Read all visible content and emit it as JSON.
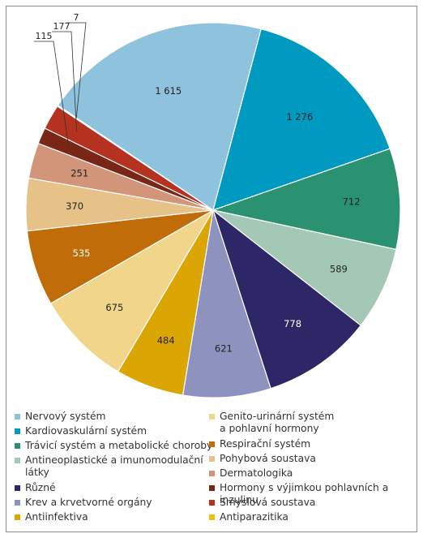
{
  "chart_data": {
    "type": "pie",
    "title": "",
    "start_angle_deg": -56,
    "direction": "clockwise",
    "slices": [
      {
        "label": "Nervový systém",
        "value": 1615,
        "value_label": "1 615",
        "color": "#8fc2dd",
        "label_light": false
      },
      {
        "label": "Kardiovaskulární systém",
        "value": 1276,
        "value_label": "1 276",
        "color": "#009ac0",
        "label_light": false
      },
      {
        "label": "Trávicí systém a metabolické choroby",
        "value": 712,
        "value_label": "712",
        "color": "#2a9270",
        "label_light": false
      },
      {
        "label": "Antineoplastické a imunomodulační látky",
        "value": 589,
        "value_label": "589",
        "color": "#a3c9b6",
        "label_light": false
      },
      {
        "label": "Různé",
        "value": 778,
        "value_label": "778",
        "color": "#2d2767",
        "label_light": true
      },
      {
        "label": "Krev a krvetvorné orgány",
        "value": 621,
        "value_label": "621",
        "color": "#8d92bf",
        "label_light": false
      },
      {
        "label": "Antiinfektiva",
        "value": 484,
        "value_label": "484",
        "color": "#dba503",
        "label_light": false
      },
      {
        "label": "Genito-urinární systém a pohlavní hormony",
        "value": 675,
        "value_label": "675",
        "color": "#f0d58a",
        "label_light": false
      },
      {
        "label": "Respirační systém",
        "value": 535,
        "value_label": "535",
        "color": "#c06d09",
        "label_light": true
      },
      {
        "label": "Pohybová soustava",
        "value": 370,
        "value_label": "370",
        "color": "#e6c188",
        "label_light": false
      },
      {
        "label": "Dermatologika",
        "value": 251,
        "value_label": "251",
        "color": "#d2957a",
        "label_light": false
      },
      {
        "label": "Hormony s výjimkou pohlavních a inzulinu",
        "value": 115,
        "value_label": "115",
        "color": "#7a2617",
        "label_light": false
      },
      {
        "label": "Smyslová soustava",
        "value": 177,
        "value_label": "177",
        "color": "#b53220",
        "label_light": false
      },
      {
        "label": "Antiparazitika",
        "value": 7,
        "value_label": "7",
        "color": "#e9c20a",
        "label_light": false
      }
    ]
  },
  "legend": {
    "left": [
      {
        "text": "Nervový systém",
        "color": "#8fc2dd"
      },
      {
        "text": "Kardiovaskulární systém",
        "color": "#009ac0"
      },
      {
        "text": "Trávicí systém a metabolické choroby",
        "color": "#2a9270"
      },
      {
        "text": "Antineoplastické a imunomodulační\nlátky",
        "color": "#a3c9b6"
      },
      {
        "text": "Různé",
        "color": "#2d2767"
      },
      {
        "text": "Krev a krvetvorné orgány",
        "color": "#8d92bf"
      },
      {
        "text": "Antiinfektiva",
        "color": "#dba503"
      }
    ],
    "right": [
      {
        "text": "Genito-urinární systém\na pohlavní hormony",
        "color": "#f0d58a"
      },
      {
        "text": "Respirační systém",
        "color": "#c06d09"
      },
      {
        "text": "Pohybová soustava",
        "color": "#e6c188"
      },
      {
        "text": "Dermatologika",
        "color": "#d2957a"
      },
      {
        "text": "Hormony s výjimkou pohlavních a inzulinu",
        "color": "#7a2617"
      },
      {
        "text": "Smyslová soustava",
        "color": "#b53220"
      },
      {
        "text": "Antiparazitika",
        "color": "#e9c20a"
      }
    ]
  }
}
